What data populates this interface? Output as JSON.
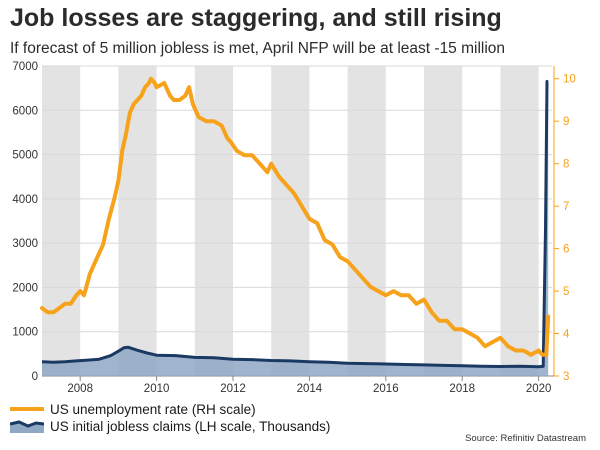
{
  "chart_data": {
    "type": "line",
    "title": "Job losses are staggering, and still rising",
    "subtitle": "If forecast of 5 million jobless is met, April NFP will be at least -15 million",
    "source": "Source: Refinitiv Datastream",
    "left_axis": {
      "ticks": [
        0,
        1000,
        2000,
        3000,
        4000,
        5000,
        6000,
        7000
      ],
      "ylim": [
        0,
        7000
      ]
    },
    "right_axis": {
      "ticks": [
        3,
        4,
        5,
        6,
        7,
        8,
        9,
        10
      ],
      "ylim": [
        3,
        10.3
      ]
    },
    "x_axis": {
      "ticks": [
        2008,
        2010,
        2012,
        2014,
        2016,
        2018,
        2020
      ],
      "xlim": [
        2007.0,
        2020.35
      ]
    },
    "shaded_years": [
      [
        2007,
        2008
      ],
      [
        2009,
        2010
      ],
      [
        2011,
        2012
      ],
      [
        2013,
        2014
      ],
      [
        2015,
        2016
      ],
      [
        2017,
        2018
      ],
      [
        2019,
        2020
      ]
    ],
    "series": [
      {
        "name": "US unemployment rate (RH scale)",
        "axis": "right",
        "color": "#f7a21b",
        "x": [
          2007.0,
          2007.15,
          2007.3,
          2007.45,
          2007.6,
          2007.75,
          2007.9,
          2008.0,
          2008.1,
          2008.25,
          2008.35,
          2008.45,
          2008.6,
          2008.75,
          2008.9,
          2009.0,
          2009.1,
          2009.2,
          2009.3,
          2009.4,
          2009.5,
          2009.6,
          2009.7,
          2009.8,
          2009.85,
          2009.95,
          2010.0,
          2010.2,
          2010.35,
          2010.45,
          2010.6,
          2010.75,
          2010.85,
          2010.95,
          2011.1,
          2011.3,
          2011.5,
          2011.7,
          2011.85,
          2011.95,
          2012.1,
          2012.3,
          2012.5,
          2012.7,
          2012.9,
          2013.0,
          2013.2,
          2013.4,
          2013.6,
          2013.8,
          2014.0,
          2014.2,
          2014.4,
          2014.6,
          2014.8,
          2015.0,
          2015.2,
          2015.4,
          2015.6,
          2015.8,
          2016.0,
          2016.2,
          2016.4,
          2016.6,
          2016.8,
          2017.0,
          2017.2,
          2017.4,
          2017.6,
          2017.8,
          2018.0,
          2018.2,
          2018.4,
          2018.6,
          2018.8,
          2019.0,
          2019.2,
          2019.4,
          2019.6,
          2019.8,
          2020.0,
          2020.1,
          2020.2,
          2020.25
        ],
        "values": [
          4.6,
          4.5,
          4.5,
          4.6,
          4.7,
          4.7,
          4.9,
          5.0,
          4.9,
          5.4,
          5.6,
          5.8,
          6.1,
          6.7,
          7.2,
          7.6,
          8.3,
          8.7,
          9.2,
          9.4,
          9.5,
          9.6,
          9.8,
          9.9,
          10.0,
          9.9,
          9.8,
          9.9,
          9.6,
          9.5,
          9.5,
          9.6,
          9.8,
          9.4,
          9.1,
          9.0,
          9.0,
          8.9,
          8.6,
          8.5,
          8.3,
          8.2,
          8.2,
          8.0,
          7.8,
          8.0,
          7.7,
          7.5,
          7.3,
          7.0,
          6.7,
          6.6,
          6.2,
          6.1,
          5.8,
          5.7,
          5.5,
          5.3,
          5.1,
          5.0,
          4.9,
          5.0,
          4.9,
          4.9,
          4.7,
          4.8,
          4.5,
          4.3,
          4.3,
          4.1,
          4.1,
          4.0,
          3.9,
          3.7,
          3.8,
          3.9,
          3.7,
          3.6,
          3.6,
          3.5,
          3.6,
          3.5,
          3.5,
          4.4
        ]
      },
      {
        "name": "US initial jobless claims (LH scale, Thousands)",
        "axis": "left",
        "color": "#1b3a63",
        "fill": "#8fa8c4",
        "x": [
          2007.0,
          2007.3,
          2007.6,
          2007.9,
          2008.2,
          2008.5,
          2008.8,
          2009.0,
          2009.15,
          2009.25,
          2009.5,
          2009.75,
          2010.0,
          2010.5,
          2011.0,
          2011.5,
          2012.0,
          2012.5,
          2013.0,
          2013.5,
          2014.0,
          2014.5,
          2015.0,
          2015.5,
          2016.0,
          2016.5,
          2017.0,
          2017.5,
          2018.0,
          2018.5,
          2019.0,
          2019.5,
          2020.0,
          2020.12,
          2020.18,
          2020.22,
          2020.25
        ],
        "values": [
          320,
          310,
          320,
          340,
          360,
          380,
          460,
          560,
          640,
          650,
          580,
          520,
          470,
          460,
          420,
          410,
          380,
          370,
          350,
          340,
          320,
          310,
          290,
          280,
          270,
          260,
          250,
          240,
          230,
          220,
          215,
          220,
          210,
          220,
          3300,
          6650,
          6650
        ]
      }
    ]
  }
}
